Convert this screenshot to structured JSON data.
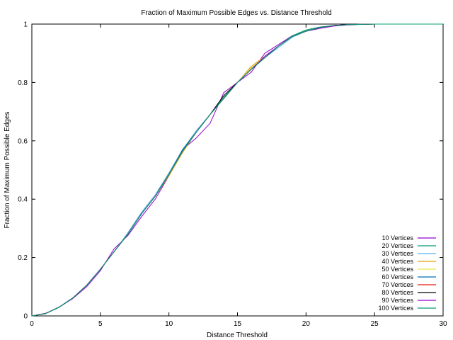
{
  "chart_data": {
    "type": "line",
    "title": "Fraction of Maximum Possible Edges vs. Distance Threshold",
    "xlabel": "Distance Threshold",
    "ylabel": "Fraction of Maximum Possible Edges",
    "xlim": [
      0,
      30
    ],
    "ylim": [
      0,
      1
    ],
    "xticks": [
      "0",
      "5",
      "10",
      "15",
      "20",
      "25",
      "30"
    ],
    "yticks": [
      "0",
      "0.2",
      "0.4",
      "0.6",
      "0.8",
      "1"
    ],
    "grid": false,
    "legend_position": "bottom-right",
    "x": [
      0,
      1,
      2,
      3,
      4,
      5,
      6,
      7,
      8,
      9,
      10,
      11,
      12,
      13,
      14,
      15,
      16,
      17,
      18,
      19,
      20,
      21,
      22,
      23,
      24,
      25,
      26,
      27,
      28,
      29,
      30
    ],
    "series": [
      {
        "name": "10 Vertices",
        "color": "#9400d3",
        "values": [
          0,
          0.009,
          0.03,
          0.06,
          0.1,
          0.155,
          0.23,
          0.275,
          0.34,
          0.4,
          0.48,
          0.57,
          0.61,
          0.66,
          0.765,
          0.8,
          0.835,
          0.9,
          0.93,
          0.96,
          0.975,
          0.985,
          0.993,
          0.997,
          0.999,
          1,
          1,
          1,
          1,
          1,
          1
        ]
      },
      {
        "name": "20 Vertices",
        "color": "#009e73",
        "values": [
          0,
          0.008,
          0.031,
          0.062,
          0.105,
          0.16,
          0.22,
          0.28,
          0.35,
          0.41,
          0.49,
          0.57,
          0.63,
          0.69,
          0.75,
          0.8,
          0.85,
          0.885,
          0.925,
          0.96,
          0.98,
          0.99,
          0.995,
          0.998,
          0.999,
          1,
          1,
          1,
          1,
          1,
          1
        ]
      },
      {
        "name": "30 Vertices",
        "color": "#56b4e9",
        "values": [
          0,
          0.008,
          0.03,
          0.062,
          0.105,
          0.16,
          0.22,
          0.285,
          0.355,
          0.415,
          0.49,
          0.57,
          0.635,
          0.69,
          0.745,
          0.8,
          0.85,
          0.885,
          0.92,
          0.955,
          0.975,
          0.988,
          0.995,
          0.998,
          0.999,
          1,
          1,
          1,
          1,
          1,
          1
        ]
      },
      {
        "name": "40 Vertices",
        "color": "#e69f00",
        "values": [
          0,
          0.008,
          0.03,
          0.062,
          0.105,
          0.16,
          0.22,
          0.28,
          0.35,
          0.41,
          0.48,
          0.56,
          0.63,
          0.69,
          0.745,
          0.8,
          0.855,
          0.89,
          0.925,
          0.958,
          0.976,
          0.988,
          0.995,
          0.998,
          0.999,
          1,
          1,
          1,
          1,
          1,
          1
        ]
      },
      {
        "name": "50 Vertices",
        "color": "#f0e442",
        "values": [
          0,
          0.008,
          0.03,
          0.062,
          0.105,
          0.16,
          0.22,
          0.28,
          0.35,
          0.41,
          0.485,
          0.565,
          0.63,
          0.69,
          0.745,
          0.8,
          0.85,
          0.89,
          0.925,
          0.958,
          0.976,
          0.988,
          0.995,
          0.998,
          0.999,
          1,
          1,
          1,
          1,
          1,
          1
        ]
      },
      {
        "name": "60 Vertices",
        "color": "#0072b2",
        "values": [
          0,
          0.008,
          0.03,
          0.062,
          0.105,
          0.16,
          0.22,
          0.28,
          0.35,
          0.41,
          0.485,
          0.57,
          0.63,
          0.69,
          0.745,
          0.8,
          0.845,
          0.885,
          0.925,
          0.958,
          0.976,
          0.988,
          0.995,
          0.998,
          0.999,
          1,
          1,
          1,
          1,
          1,
          1
        ]
      },
      {
        "name": "70 Vertices",
        "color": "#e51e10",
        "values": [
          0,
          0.008,
          0.03,
          0.062,
          0.105,
          0.16,
          0.22,
          0.28,
          0.35,
          0.41,
          0.485,
          0.565,
          0.63,
          0.69,
          0.745,
          0.8,
          0.845,
          0.885,
          0.925,
          0.958,
          0.976,
          0.988,
          0.995,
          0.998,
          0.999,
          1,
          1,
          1,
          1,
          1,
          1
        ]
      },
      {
        "name": "80 Vertices",
        "color": "#000000",
        "values": [
          0,
          0.008,
          0.03,
          0.062,
          0.105,
          0.16,
          0.22,
          0.28,
          0.35,
          0.41,
          0.485,
          0.565,
          0.63,
          0.69,
          0.755,
          0.8,
          0.845,
          0.885,
          0.925,
          0.958,
          0.976,
          0.988,
          0.995,
          0.998,
          0.999,
          1,
          1,
          1,
          1,
          1,
          1
        ]
      },
      {
        "name": "90 Vertices",
        "color": "#9400d3",
        "values": [
          0,
          0.008,
          0.03,
          0.062,
          0.105,
          0.16,
          0.22,
          0.28,
          0.35,
          0.41,
          0.485,
          0.565,
          0.63,
          0.69,
          0.745,
          0.8,
          0.845,
          0.89,
          0.925,
          0.958,
          0.976,
          0.988,
          0.995,
          0.998,
          0.999,
          1,
          1,
          1,
          1,
          1,
          1
        ]
      },
      {
        "name": "100 Vertices",
        "color": "#009e73",
        "values": [
          0,
          0.008,
          0.03,
          0.062,
          0.105,
          0.16,
          0.22,
          0.28,
          0.35,
          0.41,
          0.485,
          0.565,
          0.63,
          0.69,
          0.745,
          0.8,
          0.845,
          0.885,
          0.925,
          0.958,
          0.976,
          0.988,
          0.995,
          0.998,
          0.999,
          1,
          1,
          1,
          1,
          1,
          1
        ]
      }
    ]
  }
}
